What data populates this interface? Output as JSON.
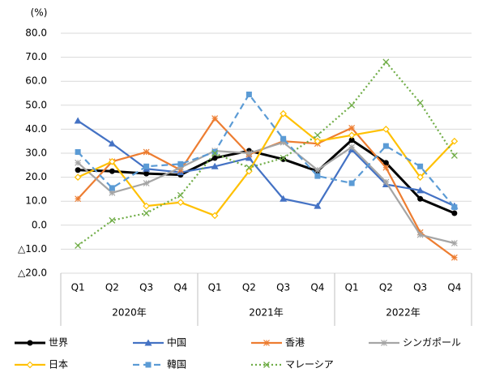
{
  "chart_data": {
    "type": "line",
    "y_unit_label": "(%)",
    "categories": [
      "Q1",
      "Q2",
      "Q3",
      "Q4",
      "Q1",
      "Q2",
      "Q3",
      "Q4",
      "Q1",
      "Q2",
      "Q3",
      "Q4"
    ],
    "category_groups": [
      "2020年",
      "2021年",
      "2022年"
    ],
    "ylim": [
      -20,
      80
    ],
    "yticks": [
      {
        "value": -20,
        "label": "△20.0"
      },
      {
        "value": -10,
        "label": "△10.0"
      },
      {
        "value": 0,
        "label": "0.0"
      },
      {
        "value": 10,
        "label": "10.0"
      },
      {
        "value": 20,
        "label": "20.0"
      },
      {
        "value": 30,
        "label": "30.0"
      },
      {
        "value": 40,
        "label": "40.0"
      },
      {
        "value": 50,
        "label": "50.0"
      },
      {
        "value": 60,
        "label": "60.0"
      },
      {
        "value": 70,
        "label": "70.0"
      },
      {
        "value": 80,
        "label": "80.0"
      }
    ],
    "grid": true,
    "legend_position": "bottom",
    "series": [
      {
        "name": "世界",
        "color": "#000000",
        "marker": "circle",
        "dash": "solid",
        "values": [
          23,
          22.5,
          21.5,
          21,
          28,
          31,
          27.5,
          22.5,
          35.5,
          26,
          11,
          5
        ]
      },
      {
        "name": "中国",
        "color": "#4472c4",
        "marker": "triangle",
        "dash": "solid",
        "values": [
          43.5,
          34,
          23.5,
          22,
          24.5,
          28,
          11,
          8,
          31.5,
          17,
          14.5,
          8
        ]
      },
      {
        "name": "香港",
        "color": "#ed7d31",
        "marker": "star",
        "dash": "solid",
        "values": [
          11,
          26.5,
          30.5,
          23,
          44.5,
          29.5,
          35,
          34,
          40.5,
          24,
          -3,
          -13.5
        ]
      },
      {
        "name": "シンガポール",
        "color": "#a5a5a5",
        "marker": "star",
        "dash": "solid",
        "values": [
          26,
          13.5,
          17.5,
          24,
          31,
          30,
          34.5,
          23,
          32.5,
          18,
          -4,
          -7.5
        ]
      },
      {
        "name": "日本",
        "color": "#ffc000",
        "marker": "diamond",
        "dash": "solid",
        "values": [
          20,
          26.5,
          8,
          9.5,
          4,
          22.5,
          46.5,
          35,
          37.5,
          40,
          20,
          35
        ]
      },
      {
        "name": "韓国",
        "color": "#5b9bd5",
        "marker": "square",
        "dash": "dashed",
        "values": [
          30.5,
          15.5,
          24.5,
          25.5,
          30.5,
          54.5,
          36,
          20.5,
          17.5,
          33,
          24.5,
          7.5
        ]
      },
      {
        "name": "マレーシア",
        "color": "#70ad47",
        "marker": "x",
        "dash": "dotted",
        "values": [
          -8.5,
          2,
          5,
          12.5,
          30,
          24,
          28,
          37.5,
          50,
          68,
          51,
          29
        ]
      }
    ]
  }
}
